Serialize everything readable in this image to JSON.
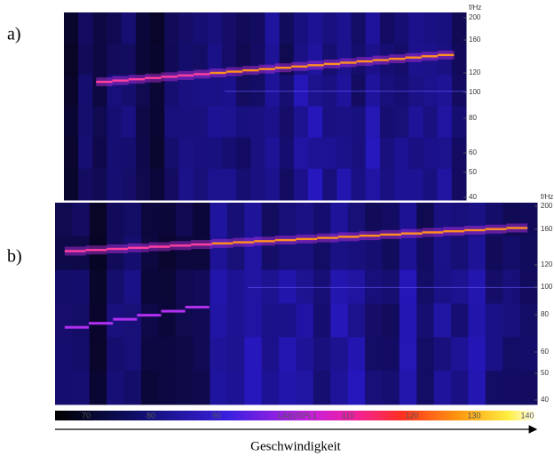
{
  "panels": [
    {
      "label": "a)",
      "axis_title": "f/Hz",
      "ticks": [
        "200",
        "160",
        "120",
        "100",
        "80",
        "60",
        "50",
        "40"
      ]
    },
    {
      "label": "b)",
      "axis_title": "f/Hz",
      "ticks": [
        "200",
        "160",
        "120",
        "100",
        "80",
        "60",
        "50",
        "40"
      ]
    }
  ],
  "colorbar": {
    "ticks": [
      "70",
      "80",
      "90",
      "LA(t)/SPL1",
      "110",
      "120",
      "130",
      "140"
    ]
  },
  "x_axis_label": "Geschwindigkeit"
}
